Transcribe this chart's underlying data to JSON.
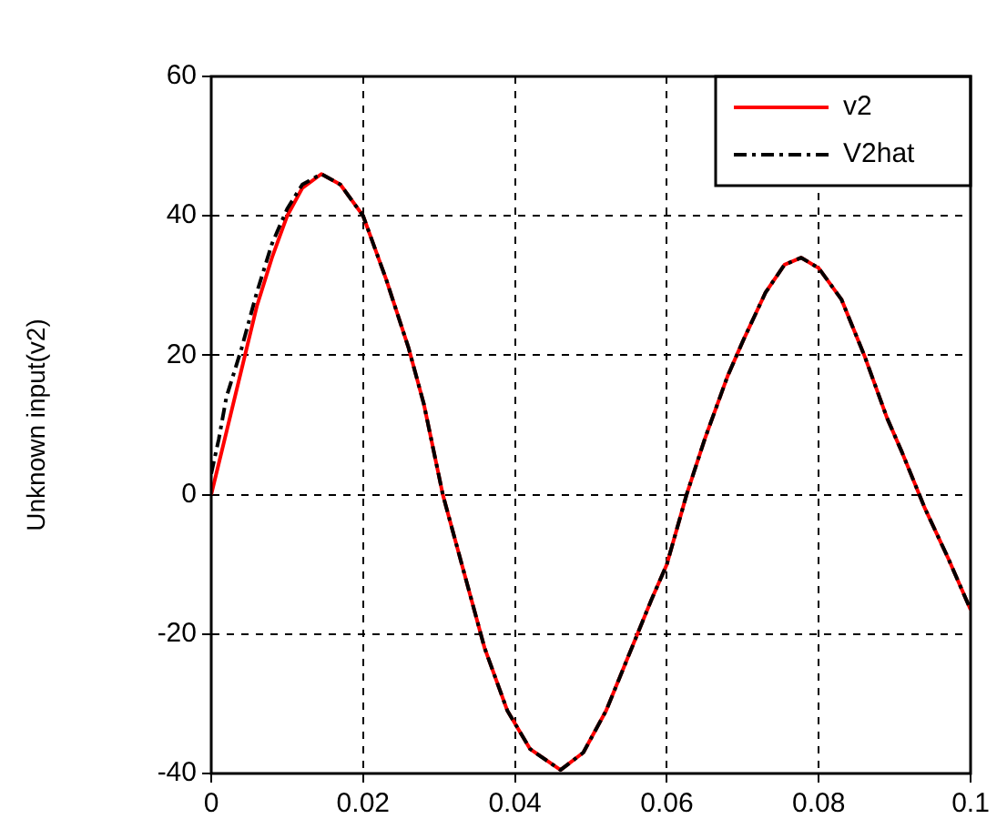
{
  "chart_data": {
    "type": "line",
    "ylabel": "Unknown input(v2)",
    "xlim": [
      0,
      0.1
    ],
    "xticks": [
      0,
      0.02,
      0.04,
      0.06,
      0.08,
      0.1
    ],
    "ylim": [
      -40,
      60
    ],
    "yticks": [
      -40,
      -20,
      0,
      20,
      40,
      60
    ],
    "grid": true,
    "legend": "top right",
    "marker": "none",
    "series": [
      {
        "name": "v2",
        "color": "#ff0000",
        "line_style": "solid",
        "x": [
          0,
          0.002,
          0.004,
          0.006,
          0.008,
          0.01,
          0.012,
          0.0145,
          0.017,
          0.02,
          0.023,
          0.026,
          0.028,
          0.0305,
          0.033,
          0.036,
          0.039,
          0.042,
          0.046,
          0.049,
          0.052,
          0.055,
          0.058,
          0.06,
          0.0626,
          0.065,
          0.068,
          0.07,
          0.073,
          0.0755,
          0.0777,
          0.08,
          0.083,
          0.086,
          0.089,
          0.091,
          0.094,
          0.097,
          0.1
        ],
        "values": [
          0,
          9,
          18,
          27,
          34,
          40,
          44,
          46,
          44.5,
          40,
          31,
          21,
          13,
          0,
          -10,
          -22,
          -31,
          -36.5,
          -39.5,
          -37,
          -31,
          -23,
          -15,
          -10,
          0,
          8,
          17,
          22,
          29,
          33,
          34,
          32.5,
          28,
          20,
          11,
          6,
          -2,
          -9,
          -16.5
        ]
      },
      {
        "name": "V2hat",
        "color": "#000000",
        "line_style": "dashed",
        "x": [
          0,
          0.001,
          0.002,
          0.004,
          0.006,
          0.008,
          0.01,
          0.012,
          0.0145,
          0.017,
          0.02,
          0.023,
          0.026,
          0.028,
          0.0305,
          0.033,
          0.036,
          0.039,
          0.042,
          0.046,
          0.049,
          0.052,
          0.055,
          0.058,
          0.06,
          0.0626,
          0.065,
          0.068,
          0.07,
          0.073,
          0.0755,
          0.0777,
          0.08,
          0.083,
          0.086,
          0.089,
          0.091,
          0.094,
          0.097,
          0.1
        ],
        "values": [
          3,
          8,
          14,
          21,
          29,
          36,
          41,
          44.5,
          46,
          44.5,
          40,
          31,
          21,
          13,
          0,
          -10,
          -22,
          -31,
          -36.5,
          -39.5,
          -37,
          -31,
          -23,
          -15,
          -10,
          0,
          8,
          17,
          22,
          29,
          33,
          34,
          32.5,
          28,
          20,
          11,
          6,
          -2,
          -9,
          -16.5
        ]
      }
    ]
  }
}
